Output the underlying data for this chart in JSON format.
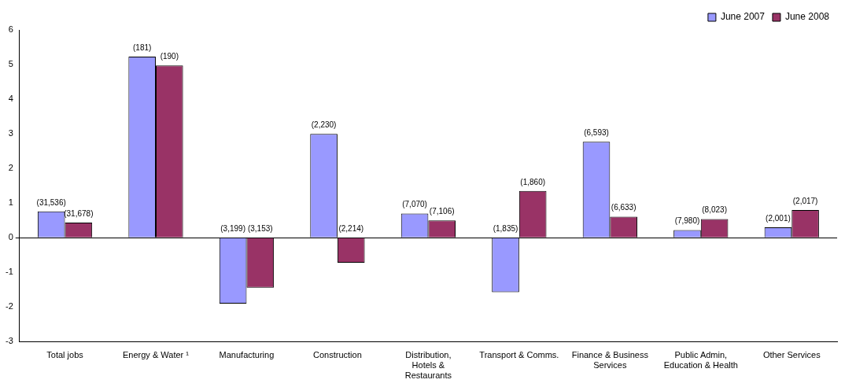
{
  "chart_data": {
    "type": "bar",
    "categories": [
      "Total jobs",
      "Energy & Water ¹",
      "Manufacturing",
      "Construction",
      "Distribution, Hotels & Restaurants",
      "Transport & Comms.",
      "Finance & Business Services",
      "Public Admin, Education & Health",
      "Other Services"
    ],
    "series": [
      {
        "name": "June 2007",
        "color": "#9999ff",
        "values": [
          0.76,
          5.23,
          -1.9,
          3.0,
          0.7,
          -1.57,
          2.77,
          0.22,
          0.3
        ]
      },
      {
        "name": "June 2008",
        "color": "#993366",
        "values": [
          0.44,
          4.97,
          -1.44,
          -0.72,
          0.5,
          1.35,
          0.61,
          0.54,
          0.8
        ]
      }
    ],
    "annotations": [
      {
        "text": "(31,536)",
        "x": "Total jobs",
        "y": 0.76
      },
      {
        "text": "(181)",
        "x": "Energy & Water ¹",
        "y": 5.23
      },
      {
        "text": "(3,199)",
        "x": "Manufacturing",
        "y": 0
      },
      {
        "text": "(2,230)",
        "x": "Construction",
        "y": 3.0
      },
      {
        "text": "(7,070)",
        "x": "Distribution, Hotels & Restaurants",
        "y": 0.7
      },
      {
        "text": "(1,835)",
        "x": "Transport & Comms.",
        "y": 0
      },
      {
        "text": "(6,593)",
        "x": "Finance & Business Services",
        "y": 2.77
      },
      {
        "text": "(7,980)",
        "x": "Public Admin, Education & Health",
        "y": 0.22
      },
      {
        "text": "(2,001)",
        "x": "Other Services",
        "y": 0.3
      },
      {
        "text": "(31,678)",
        "x": "Total jobs",
        "y": 0.44
      },
      {
        "text": "(190)",
        "x": "Energy & Water ¹",
        "y": 4.97
      },
      {
        "text": "(3,153)",
        "x": "Manufacturing",
        "y": 0
      },
      {
        "text": "(2,214)",
        "x": "Construction",
        "y": 0
      },
      {
        "text": "(7,106)",
        "x": "Distribution, Hotels & Restaurants",
        "y": 0.5
      },
      {
        "text": "(1,860)",
        "x": "Transport & Comms.",
        "y": 1.35
      },
      {
        "text": "(6,633)",
        "x": "Finance & Business Services",
        "y": 0.61
      },
      {
        "text": "(8,023)",
        "x": "Public Admin, Education & Health",
        "y": 0.54
      },
      {
        "text": "(2,017)",
        "x": "Other Services",
        "y": 0.8
      }
    ],
    "ylim": [
      -3,
      6
    ],
    "yticks": [
      -3,
      -2,
      -1,
      0,
      1,
      2,
      3,
      4,
      5,
      6
    ],
    "legend": "top right"
  }
}
